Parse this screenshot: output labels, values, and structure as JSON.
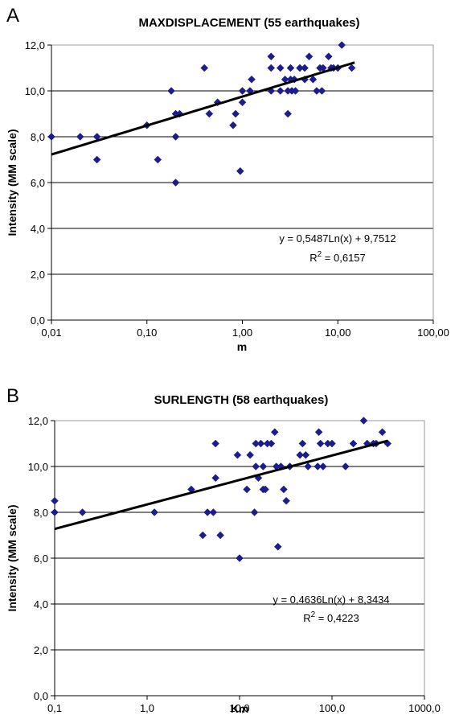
{
  "chart_data": [
    {
      "type": "scatter",
      "panel": "A",
      "title": "MAXDISPLACEMENT (55 earthquakes)",
      "xlabel": "m",
      "ylabel": "Intensity (MM scale)",
      "x_scale": "log",
      "xlim": [
        0.01,
        100
      ],
      "ylim": [
        0,
        12
      ],
      "x_ticks": [
        0.01,
        0.1,
        1,
        10,
        100
      ],
      "x_tick_labels": [
        "0,01",
        "0,10",
        "1,00",
        "10,00",
        "100,00"
      ],
      "y_ticks": [
        0,
        2,
        4,
        6,
        8,
        10,
        12
      ],
      "y_tick_labels": [
        "0,0",
        "2,0",
        "4,0",
        "6,0",
        "8,0",
        "10,0",
        "12,0"
      ],
      "grid": "horizontal",
      "marker_color": "#1c1c8c",
      "trend_color": "#000000",
      "series": [
        {
          "points": [
            [
              0.01,
              8
            ],
            [
              0.02,
              8
            ],
            [
              0.03,
              8
            ],
            [
              0.03,
              7
            ],
            [
              0.1,
              8.5
            ],
            [
              0.13,
              7
            ],
            [
              0.18,
              10
            ],
            [
              0.2,
              9
            ],
            [
              0.2,
              8
            ],
            [
              0.2,
              6
            ],
            [
              0.22,
              9
            ],
            [
              0.4,
              11
            ],
            [
              0.45,
              9
            ],
            [
              0.55,
              9.5
            ],
            [
              0.8,
              8.5
            ],
            [
              0.85,
              9
            ],
            [
              0.95,
              6.5
            ],
            [
              1.0,
              10
            ],
            [
              1.0,
              9.5
            ],
            [
              1.2,
              10
            ],
            [
              1.25,
              10.5
            ],
            [
              2.0,
              11.5
            ],
            [
              2.0,
              11
            ],
            [
              2.0,
              10
            ],
            [
              2.5,
              11
            ],
            [
              2.5,
              10
            ],
            [
              2.8,
              10.5
            ],
            [
              3.0,
              10
            ],
            [
              3.0,
              9
            ],
            [
              3.2,
              11
            ],
            [
              3.2,
              10.5
            ],
            [
              3.3,
              10
            ],
            [
              3.5,
              10.5
            ],
            [
              3.6,
              10
            ],
            [
              4.0,
              11
            ],
            [
              4.5,
              10.5
            ],
            [
              4.5,
              11
            ],
            [
              5.0,
              11.5
            ],
            [
              5.5,
              10.5
            ],
            [
              6.0,
              10
            ],
            [
              6.5,
              11
            ],
            [
              6.8,
              10
            ],
            [
              7.0,
              11
            ],
            [
              8.0,
              11.5
            ],
            [
              8.5,
              11
            ],
            [
              9.0,
              11
            ],
            [
              10.0,
              11
            ],
            [
              11.0,
              12
            ],
            [
              14.0,
              11
            ]
          ]
        }
      ],
      "trendline": {
        "a": 0.5487,
        "b": 9.7512,
        "x_from": 0.01,
        "x_to": 15
      },
      "annotation": {
        "equation": "y = 0,5487Ln(x) + 9,7512",
        "r2_prefix": "R",
        "r2_exponent": "2",
        "r2_suffix": " = 0,6157"
      }
    },
    {
      "type": "scatter",
      "panel": "B",
      "title": "SURLENGTH (58 earthquakes)",
      "xlabel": "Km",
      "ylabel": "Intensity (MM scale)",
      "x_scale": "log",
      "xlim": [
        0.1,
        1000
      ],
      "ylim": [
        0,
        12
      ],
      "x_ticks": [
        0.1,
        1,
        10,
        100,
        1000
      ],
      "x_tick_labels": [
        "0,1",
        "1,0",
        "10,0",
        "100,0",
        "1000,0"
      ],
      "y_ticks": [
        0,
        2,
        4,
        6,
        8,
        10,
        12
      ],
      "y_tick_labels": [
        "0,0",
        "2,0",
        "4,0",
        "6,0",
        "8,0",
        "10,0",
        "12,0"
      ],
      "grid": "horizontal",
      "marker_color": "#1c1c8c",
      "trend_color": "#000000",
      "series": [
        {
          "points": [
            [
              0.1,
              8.5
            ],
            [
              0.1,
              8
            ],
            [
              0.2,
              8
            ],
            [
              1.2,
              8
            ],
            [
              3.0,
              9
            ],
            [
              4.0,
              7
            ],
            [
              4.5,
              8
            ],
            [
              5.2,
              8
            ],
            [
              5.5,
              11
            ],
            [
              5.5,
              9.5
            ],
            [
              6.2,
              7
            ],
            [
              9.5,
              10.5
            ],
            [
              10.0,
              6
            ],
            [
              12.0,
              9
            ],
            [
              13.0,
              10.5
            ],
            [
              14.5,
              8
            ],
            [
              15.0,
              11
            ],
            [
              15.0,
              10
            ],
            [
              16.0,
              9.5
            ],
            [
              17.0,
              11
            ],
            [
              18.0,
              10
            ],
            [
              18.0,
              9
            ],
            [
              19.0,
              9
            ],
            [
              20.0,
              11
            ],
            [
              22.0,
              11
            ],
            [
              24.0,
              11.5
            ],
            [
              25.0,
              10
            ],
            [
              26.0,
              6.5
            ],
            [
              28.0,
              10
            ],
            [
              30.0,
              9
            ],
            [
              32.0,
              8.5
            ],
            [
              35.0,
              10
            ],
            [
              45.0,
              10.5
            ],
            [
              48.0,
              11
            ],
            [
              52.0,
              10.5
            ],
            [
              55.0,
              10
            ],
            [
              70.0,
              10
            ],
            [
              72.0,
              11.5
            ],
            [
              75.0,
              11
            ],
            [
              80.0,
              10
            ],
            [
              90.0,
              11
            ],
            [
              100.0,
              11
            ],
            [
              140.0,
              10
            ],
            [
              170.0,
              11
            ],
            [
              220.0,
              12
            ],
            [
              240.0,
              11
            ],
            [
              280.0,
              11
            ],
            [
              300.0,
              11
            ],
            [
              350.0,
              11.5
            ],
            [
              400.0,
              11
            ]
          ]
        }
      ],
      "trendline": {
        "a": 0.4636,
        "b": 8.3434,
        "x_from": 0.1,
        "x_to": 400
      },
      "annotation": {
        "equation": "y = 0,4636Ln(x) + 8,3434",
        "r2_prefix": "R",
        "r2_exponent": "2",
        "r2_suffix": " = 0,4223"
      }
    }
  ]
}
